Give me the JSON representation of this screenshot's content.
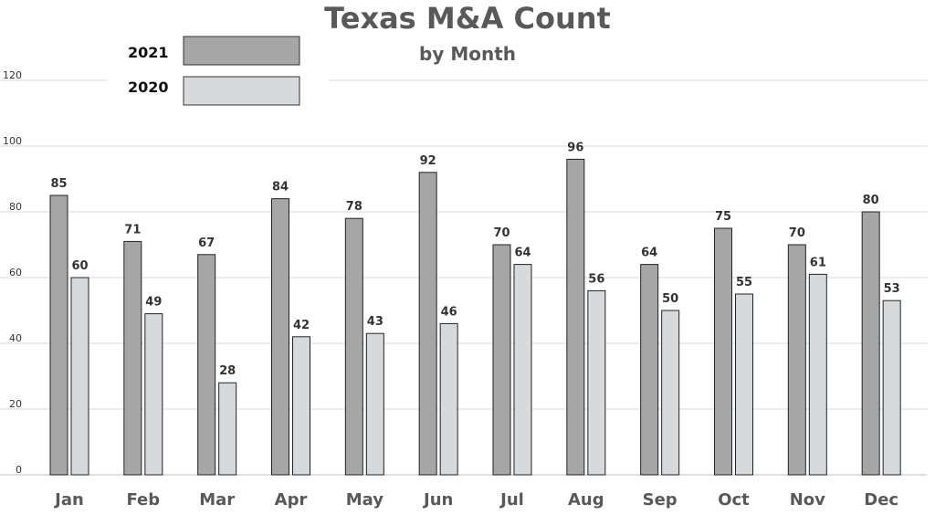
{
  "chart_data": {
    "type": "bar",
    "title": "Texas M&A Count",
    "subtitle": "by Month",
    "categories": [
      "Jan",
      "Feb",
      "Mar",
      "Apr",
      "May",
      "Jun",
      "Jul",
      "Aug",
      "Sep",
      "Oct",
      "Nov",
      "Dec"
    ],
    "series": [
      {
        "name": "2021",
        "color": "#a6a6a6",
        "values": [
          85,
          71,
          67,
          84,
          78,
          92,
          70,
          96,
          64,
          75,
          70,
          80
        ]
      },
      {
        "name": "2020",
        "color": "#d6dadd",
        "values": [
          60,
          49,
          28,
          42,
          43,
          46,
          64,
          56,
          50,
          55,
          61,
          53
        ]
      }
    ],
    "ylim": [
      0,
      120
    ],
    "yticks": [
      0,
      20,
      40,
      60,
      80,
      100,
      120
    ],
    "grid": true,
    "legend_position": "top-left"
  }
}
